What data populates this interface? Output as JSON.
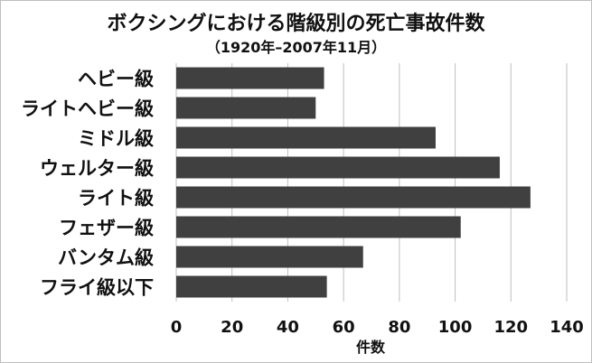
{
  "chart_data": {
    "type": "bar",
    "orientation": "horizontal",
    "title": "ボクシングにおける階級別の死亡事故件数",
    "subtitle": "（1920年–2007年11月）",
    "xlabel": "件数",
    "ylabel": "",
    "categories": [
      "ヘビー級",
      "ライトヘビー級",
      "ミドル級",
      "ウェルター級",
      "ライト級",
      "フェザー級",
      "バンタム級",
      "フライ級以下"
    ],
    "values": [
      53,
      50,
      93,
      116,
      127,
      102,
      67,
      54
    ],
    "xlim": [
      0,
      140
    ],
    "xticks": [
      0,
      20,
      40,
      60,
      80,
      100,
      120,
      140
    ],
    "grid": "vertical",
    "legend": "none",
    "bar_color": "#404040",
    "grid_color": "#bfbfbf"
  }
}
